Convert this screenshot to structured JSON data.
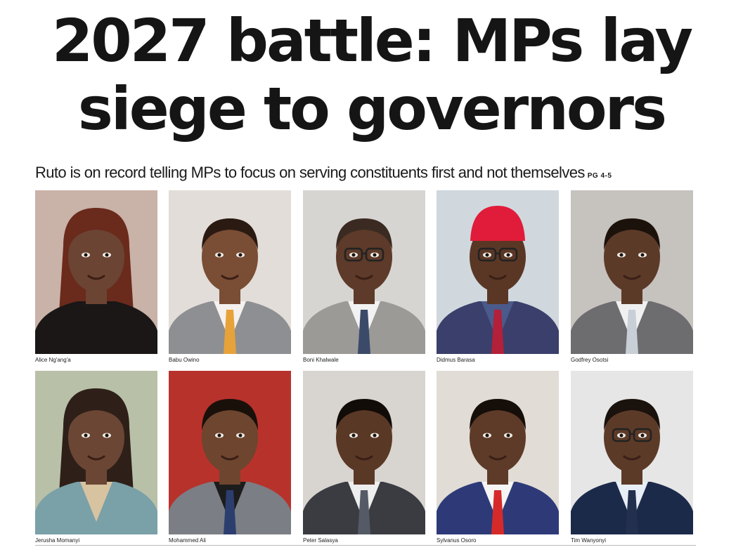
{
  "headline": {
    "line1": "2027 battle: MPs lay",
    "line2": "siege to governors"
  },
  "subhead": {
    "text": "Ruto is on record telling MPs to focus on serving constituents first and not themselves",
    "page_ref": "PG 4-5"
  },
  "photos": [
    {
      "caption": "Alice Ng'ang'a",
      "bg": "#c9b2a8",
      "skin": "#6b4433",
      "hair": "#6a2a1c",
      "jacket": "#1a1716",
      "shirt": "#1a1716",
      "tie": "none",
      "hat": "none",
      "glasses": false
    },
    {
      "caption": "Babu Owino",
      "bg": "#e2ddd8",
      "skin": "#7a4d35",
      "hair": "#2a1a12",
      "jacket": "#8e8f93",
      "shirt": "#f4f1ee",
      "tie": "#e8a23a",
      "hat": "none",
      "glasses": false
    },
    {
      "caption": "Boni Khalwale",
      "bg": "#d7d5d2",
      "skin": "#5d3a29",
      "hair": "#3a2a22",
      "jacket": "#9b9a97",
      "shirt": "#f2f2f2",
      "tie": "#3c4a6a",
      "hat": "none",
      "glasses": true
    },
    {
      "caption": "Didmus Barasa",
      "bg": "#d0d8de",
      "skin": "#5a3725",
      "hair": "#1c120c",
      "jacket": "#3a3f6b",
      "shirt": "#4a5a8a",
      "tie": "#b2203a",
      "hat": "#e01c3a",
      "glasses": true
    },
    {
      "caption": "Godfrey Osotsi",
      "bg": "#c6c2be",
      "skin": "#5c3a28",
      "hair": "#1c120c",
      "jacket": "#6d6d70",
      "shirt": "#f0f0f0",
      "tie": "#c9cfd6",
      "hat": "none",
      "glasses": false
    },
    {
      "caption": "Jerusha Momanyi",
      "bg": "#b9c0a8",
      "skin": "#6b4634",
      "hair": "#2e2018",
      "jacket": "#7aa0a8",
      "shirt": "#d8c3a0",
      "tie": "none",
      "hat": "none",
      "glasses": false
    },
    {
      "caption": "Mohammed Ali",
      "bg": "#b8322c",
      "skin": "#6e452f",
      "hair": "#1a100a",
      "jacket": "#7b7e84",
      "shirt": "#1c1c1c",
      "tie": "#2c3e6e",
      "hat": "none",
      "glasses": false
    },
    {
      "caption": "Peter Salasya",
      "bg": "#d8d4cf",
      "skin": "#5a3826",
      "hair": "#120c08",
      "jacket": "#3a3c42",
      "shirt": "#eeeeee",
      "tie": "#555b66",
      "hat": "none",
      "glasses": false
    },
    {
      "caption": "Sylvanus Osoro",
      "bg": "#e1dcd6",
      "skin": "#5e3b28",
      "hair": "#150e09",
      "jacket": "#2e3a78",
      "shirt": "#f5f5f5",
      "tie": "#d62a2a",
      "hat": "none",
      "glasses": false
    },
    {
      "caption": "Tim Wanyonyi",
      "bg": "#e6e6e6",
      "skin": "#5c3a28",
      "hair": "#1a120c",
      "jacket": "#1c2a4a",
      "shirt": "#e8eef6",
      "tie": "#22304e",
      "hat": "none",
      "glasses": true
    }
  ]
}
